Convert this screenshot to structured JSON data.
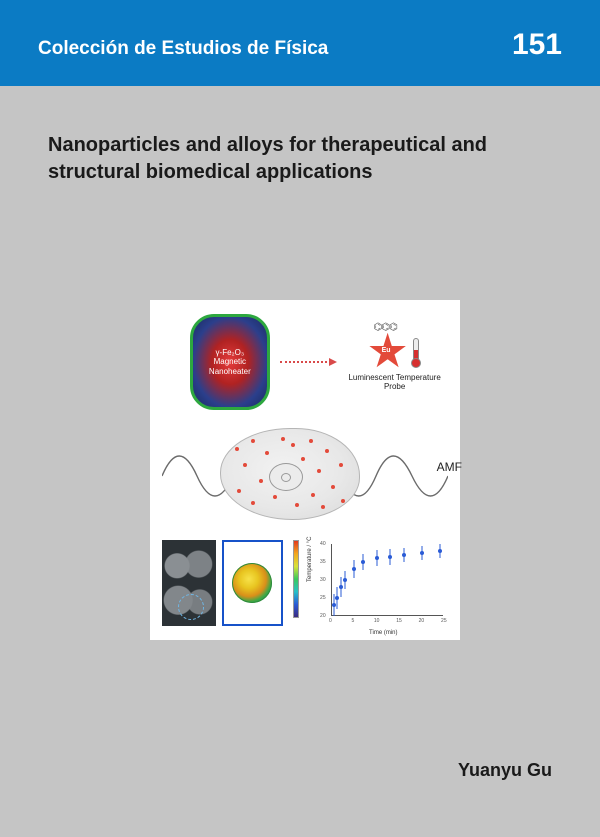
{
  "header": {
    "series_name": "Colección de Estudios de Física",
    "volume_number": "151",
    "band_color": "#0b7bc4",
    "text_color": "#ffffff"
  },
  "title": "Nanoparticles and alloys for therapeutical and structural biomedical applications",
  "author": "Yuanyu Gu",
  "background_color": "#c5c5c5",
  "figure": {
    "nanoheater": {
      "line1": "γ-Fe₂O₃",
      "line2": "Magnetic",
      "line3": "Nanoheater",
      "border_color": "#2da83f",
      "fill_inner": "#e53b3b",
      "fill_outer": "#1a2a60"
    },
    "probe": {
      "center_label": "Eu",
      "label": "Luminescent Temperature Probe",
      "star_color": "#e34a3a"
    },
    "amf_label": "AMF",
    "wave": {
      "stroke": "#6b6b6b",
      "amplitude": 34,
      "cycles": 4
    },
    "cell_dot_color": "#e34a3a",
    "arrow_color": "#d94a4a",
    "chart": {
      "type": "scatter",
      "xlabel": "Time (min)",
      "ylabel": "Temperature / °C",
      "xlim": [
        0,
        25
      ],
      "ylim": [
        20,
        40
      ],
      "xticks": [
        0,
        5,
        10,
        15,
        20,
        25
      ],
      "yticks": [
        20,
        25,
        30,
        35,
        40
      ],
      "point_color": "#2a5bd6",
      "errorbar_color": "#2a5bd6",
      "x": [
        0.5,
        1,
        2,
        3,
        5,
        7,
        10,
        13,
        16,
        20,
        24
      ],
      "y": [
        23,
        25,
        28,
        30,
        33,
        35,
        36,
        36.5,
        37,
        37.5,
        38
      ],
      "yerr": [
        3,
        3,
        2.8,
        2.5,
        2.5,
        2.3,
        2.2,
        2.2,
        2.0,
        2.0,
        2.0
      ]
    },
    "colorbar_colors": [
      "#3b2a80",
      "#2a5bd6",
      "#28c0c7",
      "#3ac95c",
      "#d8e23a",
      "#f2a61e",
      "#e23a1e"
    ]
  }
}
